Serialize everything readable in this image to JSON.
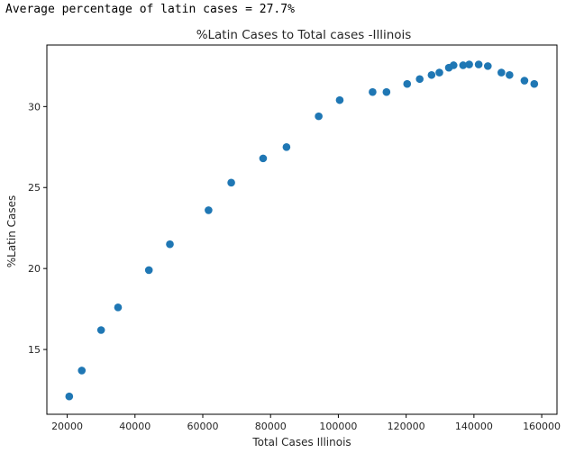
{
  "output": {
    "text": "Average percentage of latin cases = 27.7%"
  },
  "chart_data": {
    "type": "scatter",
    "title": "%Latin Cases to Total cases -Illinois",
    "xlabel": "Total Cases Illinois",
    "ylabel": "%Latin Cases",
    "xlim": [
      14000,
      164500
    ],
    "ylim": [
      11.0,
      33.8
    ],
    "xticks": [
      20000,
      40000,
      60000,
      80000,
      100000,
      120000,
      140000,
      160000
    ],
    "xtick_labels": [
      "20000",
      "40000",
      "60000",
      "80000",
      "100000",
      "120000",
      "140000",
      "160000"
    ],
    "yticks": [
      15,
      20,
      25,
      30
    ],
    "ytick_labels": [
      "15",
      "20",
      "25",
      "30"
    ],
    "grid": false,
    "marker_color": "#1f77b4",
    "series": [
      {
        "x": [
          20600,
          24300,
          30000,
          35000,
          44100,
          50300,
          61700,
          68400,
          77800,
          84700,
          94200,
          100400,
          110100,
          114200,
          120300,
          124000,
          127500,
          129800,
          132600,
          134000,
          136800,
          138600,
          141400,
          144100,
          148100,
          150500,
          154900,
          157800
        ],
        "y": [
          12.1,
          13.7,
          16.2,
          17.6,
          19.9,
          21.5,
          23.6,
          25.3,
          26.8,
          27.5,
          29.4,
          30.4,
          30.9,
          30.9,
          31.4,
          31.7,
          31.95,
          32.1,
          32.4,
          32.55,
          32.55,
          32.6,
          32.6,
          32.5,
          32.1,
          31.95,
          31.6,
          31.4
        ]
      }
    ]
  }
}
